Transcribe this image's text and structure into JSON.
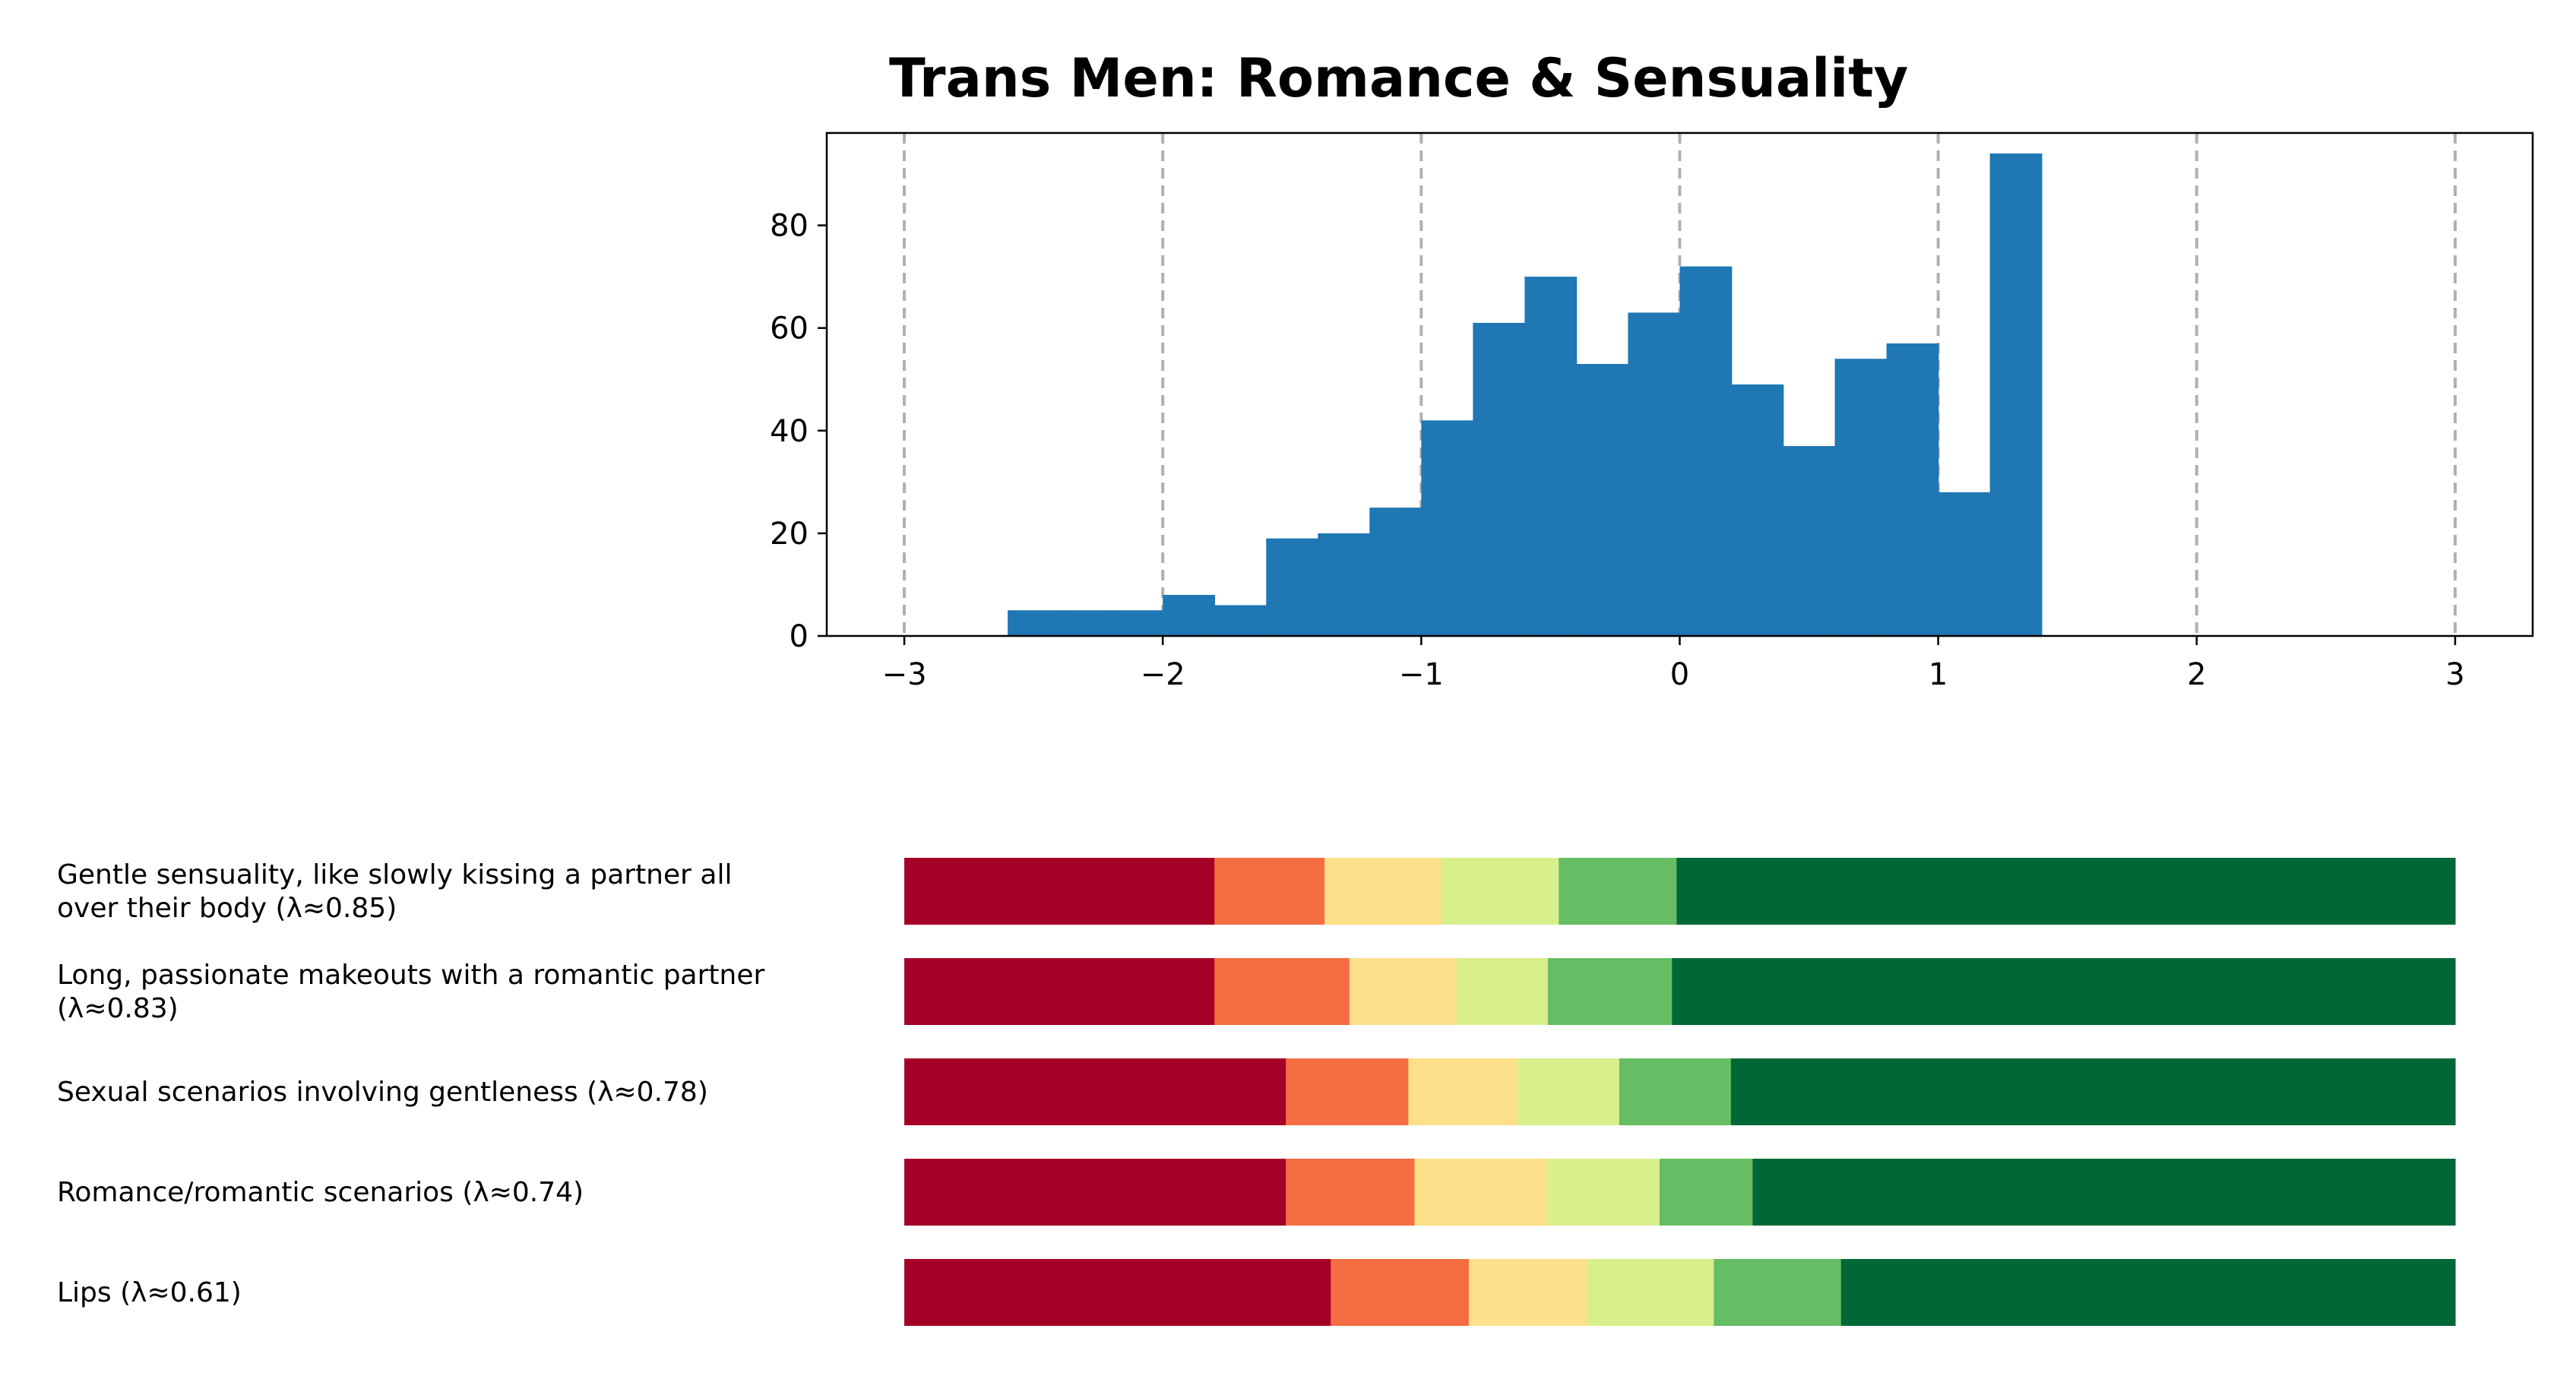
{
  "chart_data": [
    {
      "type": "bar",
      "subtype": "histogram",
      "title": "Trans Men: Romance & Sensuality",
      "xlabel": "",
      "ylabel": "",
      "xlim": [
        -3.3,
        3.3
      ],
      "ylim": [
        0,
        98
      ],
      "xticks": [
        -3,
        -2,
        -1,
        0,
        1,
        2,
        3
      ],
      "xtick_labels": [
        "−3",
        "−2",
        "−1",
        "0",
        "1",
        "2",
        "3"
      ],
      "yticks": [
        0,
        20,
        40,
        60,
        80
      ],
      "ytick_labels": [
        "0",
        "20",
        "40",
        "60",
        "80"
      ],
      "grid": "vertical dashed lines at x ticks",
      "bar_color": "#1f77b4",
      "grid_color": "#b0b0b0",
      "bins": [
        {
          "x0": -2.6,
          "x1": -2.4,
          "count": 5
        },
        {
          "x0": -2.4,
          "x1": -2.2,
          "count": 5
        },
        {
          "x0": -2.2,
          "x1": -2.0,
          "count": 5
        },
        {
          "x0": -2.0,
          "x1": -1.8,
          "count": 8
        },
        {
          "x0": -1.8,
          "x1": -1.6,
          "count": 6
        },
        {
          "x0": -1.6,
          "x1": -1.4,
          "count": 19
        },
        {
          "x0": -1.4,
          "x1": -1.2,
          "count": 20
        },
        {
          "x0": -1.2,
          "x1": -1.0,
          "count": 25
        },
        {
          "x0": -1.0,
          "x1": -0.8,
          "count": 42
        },
        {
          "x0": -0.8,
          "x1": -0.6,
          "count": 61
        },
        {
          "x0": -0.6,
          "x1": -0.4,
          "count": 70
        },
        {
          "x0": -0.4,
          "x1": -0.2,
          "count": 53
        },
        {
          "x0": -0.2,
          "x1": 0.0,
          "count": 63
        },
        {
          "x0": 0.0,
          "x1": 0.2,
          "count": 72
        },
        {
          "x0": 0.2,
          "x1": 0.4,
          "count": 49
        },
        {
          "x0": 0.4,
          "x1": 0.6,
          "count": 37
        },
        {
          "x0": 0.6,
          "x1": 0.8,
          "count": 54
        },
        {
          "x0": 0.8,
          "x1": 1.0,
          "count": 57
        },
        {
          "x0": 1.0,
          "x1": 1.2,
          "count": 28
        },
        {
          "x0": 1.2,
          "x1": 1.4,
          "count": 94
        }
      ]
    },
    {
      "type": "bar",
      "subtype": "stacked-horizontal-100-percent",
      "title": "",
      "legend": "none",
      "segment_colors": [
        "#a50026",
        "#f46d43",
        "#fee08b",
        "#d9ef8b",
        "#66bd63",
        "#006837"
      ],
      "items": [
        {
          "label": "Gentle sensuality, like slowly kissing a partner all over their body (λ≈0.85)",
          "label_lines": [
            "Gentle sensuality, like slowly kissing a partner all",
            "over their body (λ≈0.85)"
          ],
          "values": [
            20.0,
            7.1,
            7.5,
            7.6,
            7.6,
            50.2
          ]
        },
        {
          "label": "Long, passionate makeouts with a romantic partner (λ≈0.83)",
          "label_lines": [
            "Long, passionate makeouts with a romantic partner",
            "(λ≈0.83)"
          ],
          "values": [
            20.0,
            8.7,
            6.9,
            5.9,
            8.0,
            50.5
          ]
        },
        {
          "label": "Sexual scenarios involving gentleness (λ≈0.78)",
          "label_lines": [
            "Sexual scenarios involving gentleness (λ≈0.78)"
          ],
          "values": [
            24.6,
            7.9,
            7.0,
            6.6,
            7.2,
            46.7
          ]
        },
        {
          "label": "Romance/romantic scenarios (λ≈0.74)",
          "label_lines": [
            "Romance/romantic scenarios (λ≈0.74)"
          ],
          "values": [
            24.6,
            8.3,
            8.6,
            7.2,
            6.0,
            45.3
          ]
        },
        {
          "label": "Lips (λ≈0.61)",
          "label_lines": [
            "Lips (λ≈0.61)"
          ],
          "values": [
            27.5,
            8.9,
            7.6,
            8.2,
            8.2,
            39.6
          ]
        }
      ]
    }
  ]
}
